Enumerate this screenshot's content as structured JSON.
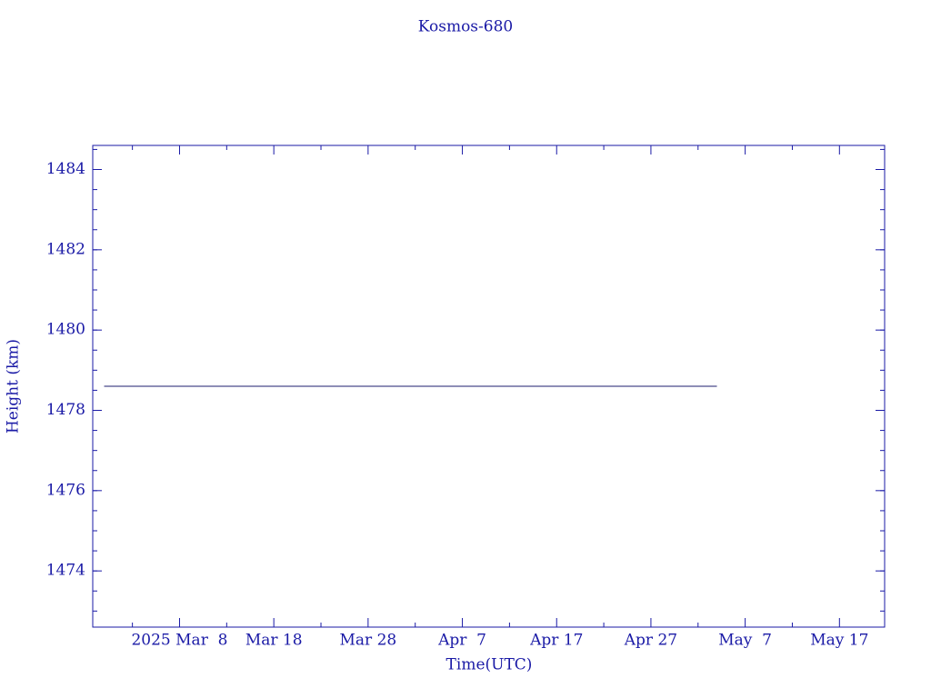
{
  "chart_data": {
    "type": "line",
    "title": "Kosmos-680",
    "x_label": "Time(UTC)",
    "y_label": "Height (km)",
    "x": [
      "2025-02-28",
      "2025-05-04"
    ],
    "series": [
      {
        "name": "Kosmos-680",
        "color": "#1c1c6e",
        "values": [
          1478.6,
          1478.6
        ]
      }
    ],
    "xlim": [
      "2025-02-26T19:00",
      "2025-05-21T19:00"
    ],
    "xticks": [
      {
        "value": "2025-03-08",
        "label": "2025 Mar  8"
      },
      {
        "value": "2025-03-18",
        "label": "Mar 18"
      },
      {
        "value": "2025-03-28",
        "label": "Mar 28"
      },
      {
        "value": "2025-04-07",
        "label": "Apr  7"
      },
      {
        "value": "2025-04-17",
        "label": "Apr 17"
      },
      {
        "value": "2025-04-27",
        "label": "Apr 27"
      },
      {
        "value": "2025-05-07",
        "label": "May  7"
      },
      {
        "value": "2025-05-17",
        "label": "May 17"
      }
    ],
    "ylim": [
      1472.6,
      1484.6
    ],
    "yticks": [
      1474,
      1476,
      1478,
      1480,
      1482,
      1484
    ],
    "grid": false
  }
}
